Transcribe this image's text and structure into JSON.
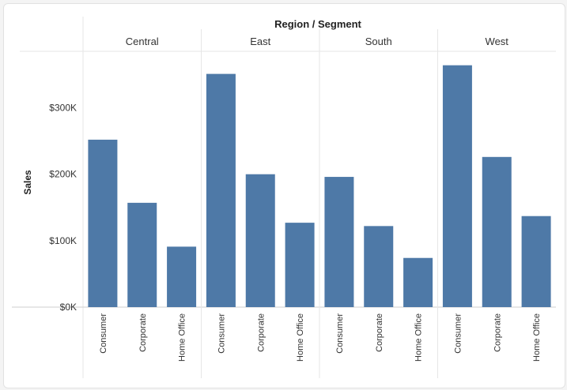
{
  "chart_data": {
    "type": "bar",
    "title": "Region / Segment",
    "ylabel": "Sales",
    "xlabel": "",
    "ylim": [
      0,
      385000
    ],
    "yticks": [
      0,
      100000,
      200000,
      300000
    ],
    "ytick_labels": [
      "$0K",
      "$100K",
      "$200K",
      "$300K"
    ],
    "segments": [
      "Consumer",
      "Corporate",
      "Home Office"
    ],
    "regions": [
      {
        "name": "Central",
        "values": [
          252000,
          157000,
          91000
        ]
      },
      {
        "name": "East",
        "values": [
          351000,
          200000,
          127000
        ]
      },
      {
        "name": "South",
        "values": [
          196000,
          122000,
          74000
        ]
      },
      {
        "name": "West",
        "values": [
          364000,
          226000,
          137000
        ]
      }
    ],
    "grid": false,
    "bar_color": "#4e79a7",
    "divider_color": "#e6e6e6",
    "axis_color": "#cfcfcf"
  }
}
